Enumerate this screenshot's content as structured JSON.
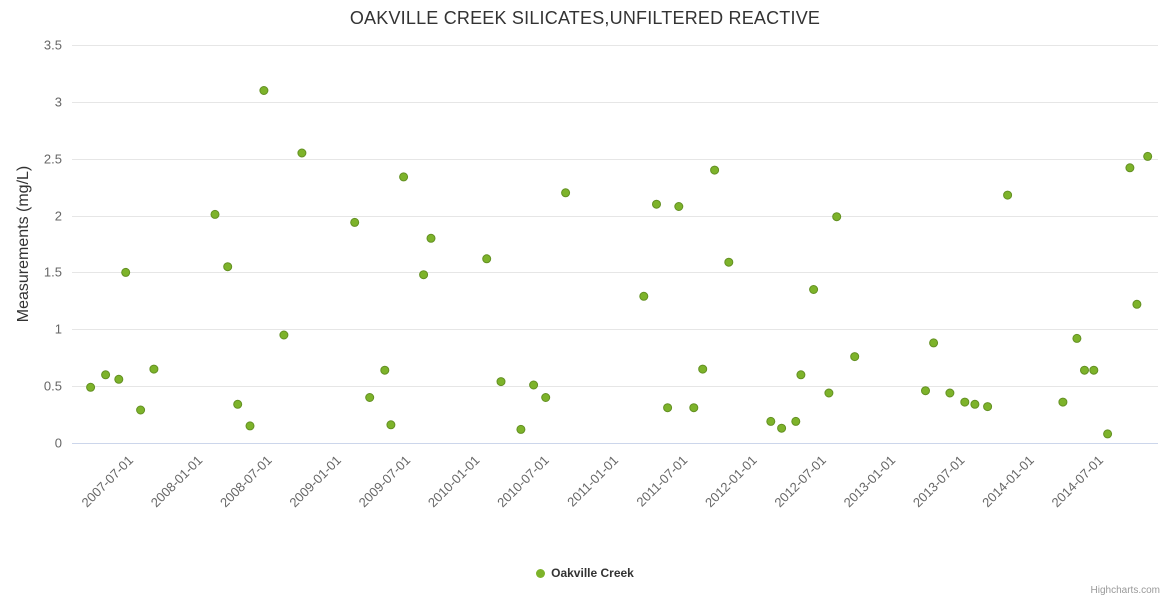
{
  "chart_data": {
    "type": "scatter",
    "title": "OAKVILLE CREEK SILICATES,UNFILTERED REACTIVE",
    "xlabel": "",
    "ylabel": "Measurements (mg/L)",
    "ylim": [
      0,
      3.5
    ],
    "y_ticks": [
      "0",
      "0.5",
      "1",
      "1.5",
      "2",
      "2.5",
      "3",
      "3.5"
    ],
    "x_ticks": [
      "2007-07-01",
      "2008-01-01",
      "2008-07-01",
      "2009-01-01",
      "2009-07-01",
      "2010-01-01",
      "2010-07-01",
      "2011-01-01",
      "2011-07-01",
      "2012-01-01",
      "2012-07-01",
      "2013-01-01",
      "2013-07-01",
      "2014-01-01",
      "2014-07-01"
    ],
    "grid": "horizontal",
    "legend_position": "bottom-center",
    "series": [
      {
        "name": "Oakville Creek",
        "marker_color": "#7db32a",
        "marker_line_color": "#639022",
        "points": [
          [
            "2007-03-19",
            0.49
          ],
          [
            "2007-04-28",
            0.6
          ],
          [
            "2007-06-02",
            0.56
          ],
          [
            "2007-06-20",
            1.5
          ],
          [
            "2007-07-29",
            0.29
          ],
          [
            "2007-09-03",
            0.65
          ],
          [
            "2008-02-12",
            2.01
          ],
          [
            "2008-03-15",
            1.55
          ],
          [
            "2008-04-11",
            0.34
          ],
          [
            "2008-05-13",
            0.15
          ],
          [
            "2008-06-19",
            3.1
          ],
          [
            "2008-08-11",
            0.95
          ],
          [
            "2008-09-28",
            2.55
          ],
          [
            "2009-02-15",
            1.94
          ],
          [
            "2009-03-24",
            0.4
          ],
          [
            "2009-05-03",
            0.64
          ],
          [
            "2009-05-19",
            0.16
          ],
          [
            "2009-06-22",
            2.34
          ],
          [
            "2009-08-14",
            1.48
          ],
          [
            "2009-09-03",
            1.8
          ],
          [
            "2010-01-28",
            1.62
          ],
          [
            "2010-03-05",
            0.54
          ],
          [
            "2010-04-27",
            0.12
          ],
          [
            "2010-05-30",
            0.51
          ],
          [
            "2010-07-01",
            0.4
          ],
          [
            "2010-08-23",
            2.2
          ],
          [
            "2011-03-16",
            1.29
          ],
          [
            "2011-04-19",
            2.1
          ],
          [
            "2011-05-18",
            0.31
          ],
          [
            "2011-06-17",
            2.08
          ],
          [
            "2011-07-26",
            0.31
          ],
          [
            "2011-08-19",
            0.65
          ],
          [
            "2011-09-20",
            2.4
          ],
          [
            "2011-10-27",
            1.59
          ],
          [
            "2012-02-16",
            0.19
          ],
          [
            "2012-03-14",
            0.13
          ],
          [
            "2012-04-21",
            0.19
          ],
          [
            "2012-05-04",
            0.6
          ],
          [
            "2012-06-07",
            1.35
          ],
          [
            "2012-07-17",
            0.44
          ],
          [
            "2012-08-07",
            1.99
          ],
          [
            "2012-09-24",
            0.76
          ],
          [
            "2013-03-28",
            0.46
          ],
          [
            "2013-04-19",
            0.88
          ],
          [
            "2013-06-01",
            0.44
          ],
          [
            "2013-07-10",
            0.36
          ],
          [
            "2013-08-06",
            0.34
          ],
          [
            "2013-09-09",
            0.32
          ],
          [
            "2013-11-01",
            2.18
          ],
          [
            "2014-03-25",
            0.36
          ],
          [
            "2014-05-01",
            0.92
          ],
          [
            "2014-05-21",
            0.64
          ],
          [
            "2014-06-15",
            0.64
          ],
          [
            "2014-07-21",
            0.08
          ],
          [
            "2014-09-19",
            2.42
          ],
          [
            "2014-10-07",
            1.22
          ],
          [
            "2014-11-05",
            2.52
          ]
        ]
      }
    ]
  },
  "legend": {
    "label": "Oakville Creek"
  },
  "credits": {
    "text": "Highcharts.com"
  },
  "colors": {
    "grid": "#e6e6e6",
    "axis_line": "#ccd6eb",
    "tick_label": "#666666",
    "title": "#333333",
    "marker_fill": "#7db32a",
    "marker_stroke": "#639022"
  }
}
